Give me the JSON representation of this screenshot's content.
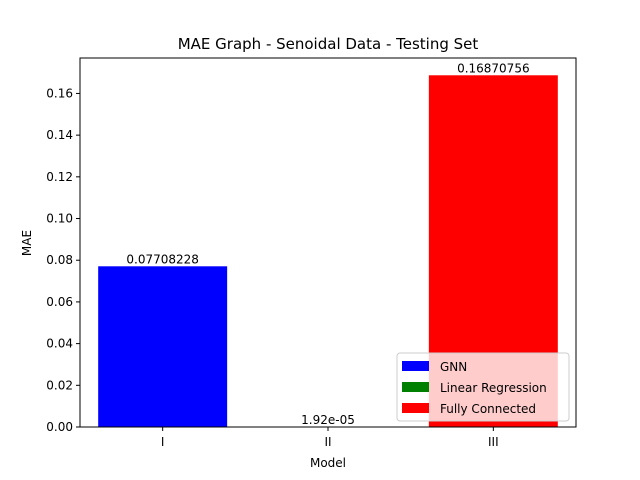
{
  "chart_data": {
    "type": "bar",
    "title": "MAE Graph - Senoidal Data - Testing Set",
    "xlabel": "Model",
    "ylabel": "MAE",
    "categories": [
      "I",
      "II",
      "III"
    ],
    "values": [
      0.07708228,
      1.92e-05,
      0.16870756
    ],
    "data_labels": [
      "0.07708228",
      "1.92e-05",
      "0.16870756"
    ],
    "series_names": [
      "GNN",
      "Linear Regression",
      "Fully Connected"
    ],
    "colors": [
      "#0000ff",
      "#008000",
      "#ff0000"
    ],
    "ylim": [
      0,
      0.177
    ],
    "yticks": [
      0.0,
      0.02,
      0.04,
      0.06,
      0.08,
      0.1,
      0.12,
      0.14,
      0.16
    ],
    "ytick_labels": [
      "0.00",
      "0.02",
      "0.04",
      "0.06",
      "0.08",
      "0.10",
      "0.12",
      "0.14",
      "0.16"
    ],
    "grid": false,
    "legend_position": "lower-right"
  }
}
